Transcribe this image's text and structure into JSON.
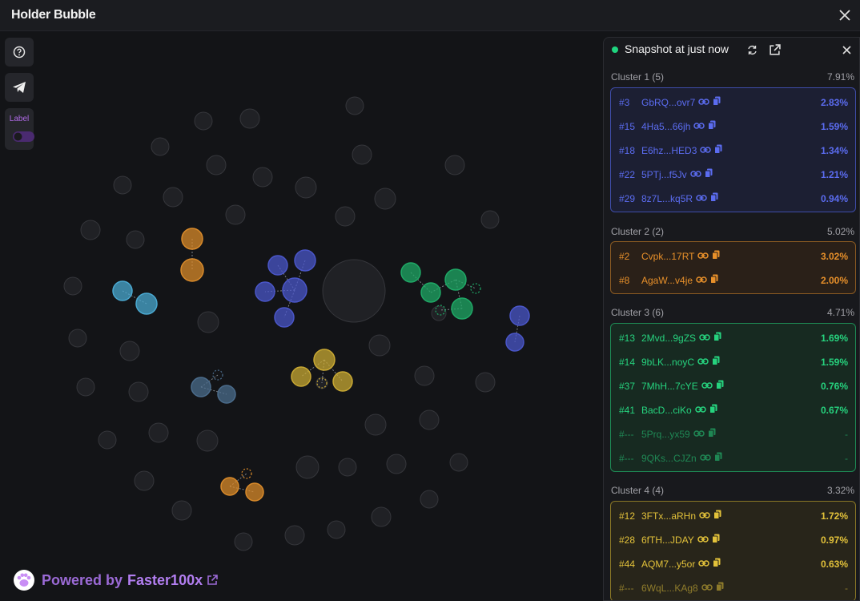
{
  "app": {
    "title": "Holder Bubble"
  },
  "toolbar": {
    "label_toggle_text": "Label",
    "label_toggle_on": false
  },
  "branding": {
    "prefix": "Powered by",
    "brand": "Faster100x"
  },
  "panel": {
    "snapshot_text": "Snapshot at just now",
    "clusters": [
      {
        "name": "Cluster 1 (5)",
        "percent": "7.91%",
        "color": "#5b6cf0",
        "bg": "#1c1f33",
        "border": "#3e4ca8",
        "rows": [
          {
            "rank": "#3",
            "address": "GbRQ...ovr7",
            "pct": "2.83%",
            "dim": false
          },
          {
            "rank": "#15",
            "address": "4Ha5...66jh",
            "pct": "1.59%",
            "dim": false
          },
          {
            "rank": "#18",
            "address": "E6hz...HED3",
            "pct": "1.34%",
            "dim": false
          },
          {
            "rank": "#22",
            "address": "5PTj...f5Jv",
            "pct": "1.21%",
            "dim": false
          },
          {
            "rank": "#29",
            "address": "8z7L...kq5R",
            "pct": "0.94%",
            "dim": false
          }
        ]
      },
      {
        "name": "Cluster 2 (2)",
        "percent": "5.02%",
        "color": "#e8902a",
        "bg": "#2a2018",
        "border": "#8a5a22",
        "rows": [
          {
            "rank": "#2",
            "address": "Cvpk...17RT",
            "pct": "3.02%",
            "dim": false
          },
          {
            "rank": "#8",
            "address": "AgaW...v4je",
            "pct": "2.00%",
            "dim": false
          }
        ]
      },
      {
        "name": "Cluster 3 (6)",
        "percent": "4.71%",
        "color": "#26d37e",
        "bg": "#172a21",
        "border": "#1e8a55",
        "rows": [
          {
            "rank": "#13",
            "address": "2Mvd...9gZS",
            "pct": "1.69%",
            "dim": false
          },
          {
            "rank": "#14",
            "address": "9bLK...noyC",
            "pct": "1.59%",
            "dim": false
          },
          {
            "rank": "#37",
            "address": "7MhH...7cYE",
            "pct": "0.76%",
            "dim": false
          },
          {
            "rank": "#41",
            "address": "BacD...ciKo",
            "pct": "0.67%",
            "dim": false
          },
          {
            "rank": "#---",
            "address": "5Prq...yx59",
            "pct": "-",
            "dim": true
          },
          {
            "rank": "#---",
            "address": "9QKs...CJZn",
            "pct": "-",
            "dim": true
          }
        ]
      },
      {
        "name": "Cluster 4 (4)",
        "percent": "3.32%",
        "color": "#e3c23a",
        "bg": "#28251a",
        "border": "#8a7726",
        "rows": [
          {
            "rank": "#12",
            "address": "3FTx...aRHn",
            "pct": "1.72%",
            "dim": false
          },
          {
            "rank": "#28",
            "address": "6fTH...JDAY",
            "pct": "0.97%",
            "dim": false
          },
          {
            "rank": "#44",
            "address": "AQM7...y5or",
            "pct": "0.63%",
            "dim": false
          },
          {
            "rank": "#---",
            "address": "6WqL...KAg8",
            "pct": "-",
            "dim": true
          }
        ]
      }
    ]
  },
  "colors": {
    "cluster1": "#4a56c8",
    "cluster2": "#d98a2a",
    "cluster3": "#1fa866",
    "cluster4": "#c8a833",
    "cyan": "#4aa8d0",
    "slate": "#4b6c8c",
    "orange2": "#d98a2a",
    "neutral": "#2a2b2f"
  }
}
